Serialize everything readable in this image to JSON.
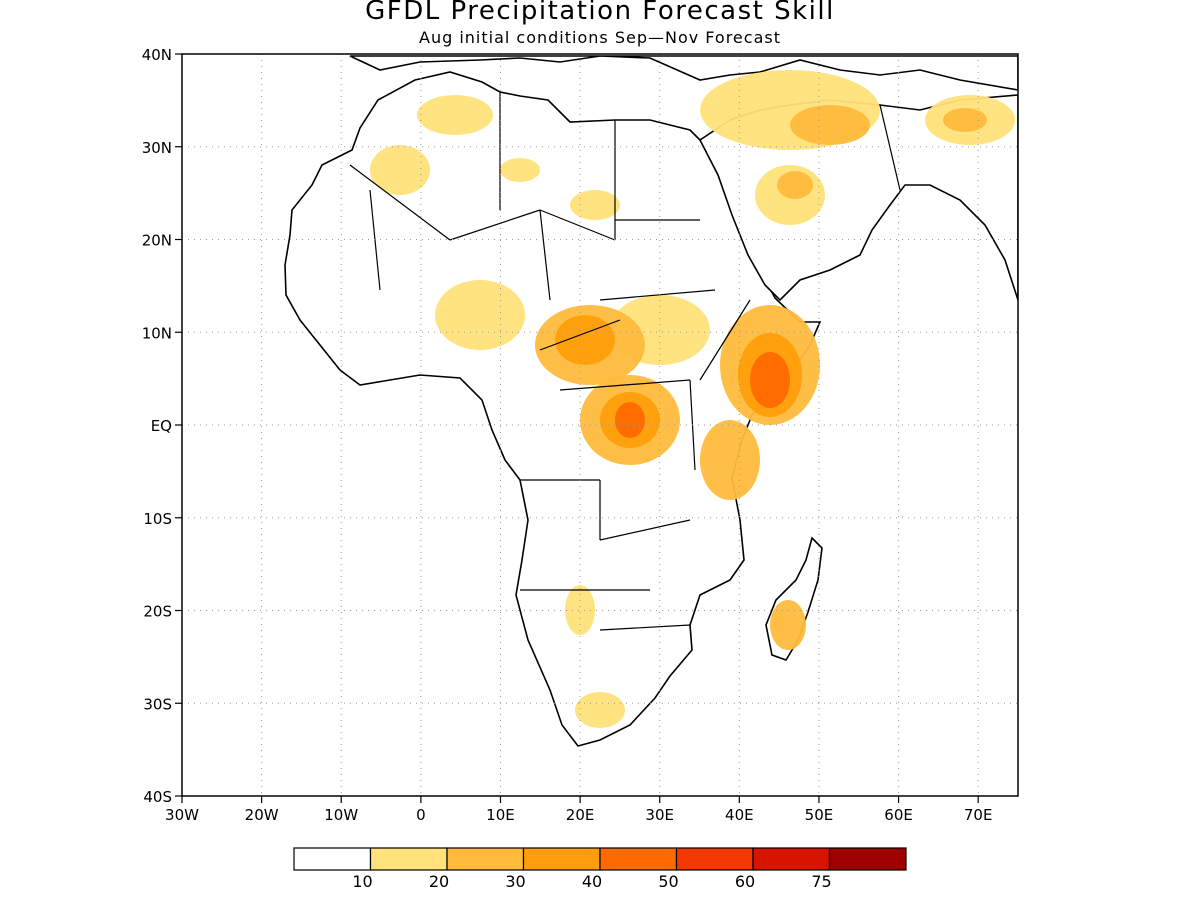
{
  "header": {
    "title": "GFDL Precipitation Forecast Skill",
    "subtitle": "Aug initial conditions  Sep—Nov Forecast"
  },
  "map": {
    "lon_range": [
      -30,
      75
    ],
    "lat_range": [
      -40,
      40
    ],
    "x_ticks": [
      "30W",
      "20W",
      "10W",
      "0",
      "10E",
      "20E",
      "30E",
      "40E",
      "50E",
      "60E",
      "70E"
    ],
    "y_ticks": [
      "40N",
      "30N",
      "20N",
      "10N",
      "EQ",
      "10S",
      "20S",
      "30S",
      "40S"
    ],
    "land_color": "#ffffff",
    "coast_color": "#000000",
    "grid": "dotted"
  },
  "colorbar": {
    "colors": [
      "#ffffff",
      "#ffe27a",
      "#ffba3c",
      "#ff9e0a",
      "#ff6a00",
      "#f43800",
      "#d81400",
      "#a00000"
    ],
    "labels": [
      "10",
      "20",
      "30",
      "40",
      "50",
      "60",
      "75"
    ]
  }
}
